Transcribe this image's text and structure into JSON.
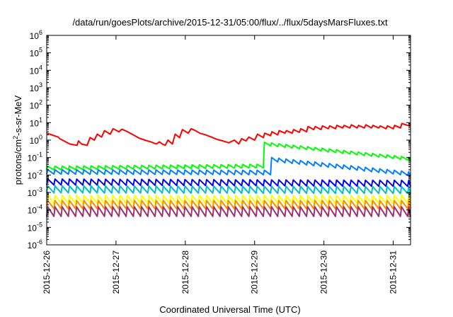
{
  "chart_data": {
    "type": "line",
    "title": "/data/run/goesPlots/archive/2015-12-31/05:00/flux/../flux/5daysMarsFluxes.txt",
    "xlabel": "Coordinated Universal Time (UTC)",
    "ylabel_parts": {
      "base": "protons/cm",
      "exp": "2",
      "rest": "-s-sr-MeV"
    },
    "yscale": "log",
    "ylim": [
      1e-06,
      1000000.0
    ],
    "y_ticks": [
      {
        "base": "10",
        "exp": "-6",
        "value": 1e-06
      },
      {
        "base": "10",
        "exp": "-5",
        "value": 1e-05
      },
      {
        "base": "10",
        "exp": "-4",
        "value": 0.0001
      },
      {
        "base": "10",
        "exp": "-3",
        "value": 0.001
      },
      {
        "base": "10",
        "exp": "-2",
        "value": 0.01
      },
      {
        "base": "10",
        "exp": "-1",
        "value": 0.1
      },
      {
        "base": "10",
        "exp": "0",
        "value": 1
      },
      {
        "base": "10",
        "exp": "1",
        "value": 10
      },
      {
        "base": "10",
        "exp": "2",
        "value": 100
      },
      {
        "base": "10",
        "exp": "3",
        "value": 1000
      },
      {
        "base": "10",
        "exp": "4",
        "value": 10000
      },
      {
        "base": "10",
        "exp": "5",
        "value": 100000
      },
      {
        "base": "10",
        "exp": "6",
        "value": 1000000
      }
    ],
    "x_ticks": [
      "2015-12-26",
      "2015-12-27",
      "2015-12-28",
      "2015-12-29",
      "2015-12-30",
      "2015-12-31"
    ],
    "x_start": "2015-12-26T00:00",
    "x_end": "2015-12-31T06:00",
    "grid": false,
    "series": [
      {
        "color": "#ff0000",
        "points": [
          [
            "2015-12-26T00:00",
            2.5
          ],
          [
            "2015-12-26T04:00",
            1.5
          ],
          [
            "2015-12-26T04:30",
            1.2
          ],
          [
            "2015-12-26T08:00",
            0.6
          ],
          [
            "2015-12-26T10:30",
            0.5
          ],
          [
            "2015-12-26T11:00",
            0.9
          ],
          [
            "2015-12-26T12:00",
            0.6
          ],
          [
            "2015-12-26T14:00",
            0.5
          ],
          [
            "2015-12-26T15:00",
            1.4
          ],
          [
            "2015-12-26T16:30",
            1.0
          ],
          [
            "2015-12-26T17:30",
            2.2
          ],
          [
            "2015-12-26T19:00",
            1.5
          ],
          [
            "2015-12-26T20:00",
            3.5
          ],
          [
            "2015-12-26T22:00",
            2.2
          ],
          [
            "2015-12-26T23:00",
            4.5
          ],
          [
            "2015-12-27T01:00",
            3.0
          ],
          [
            "2015-12-27T02:00",
            4.2
          ],
          [
            "2015-12-27T04:00",
            3.0
          ],
          [
            "2015-12-27T06:00",
            2.0
          ],
          [
            "2015-12-27T08:00",
            1.3
          ],
          [
            "2015-12-27T10:00",
            1.0
          ],
          [
            "2015-12-27T12:00",
            0.8
          ],
          [
            "2015-12-27T14:00",
            0.6
          ],
          [
            "2015-12-27T15:00",
            0.8
          ],
          [
            "2015-12-27T16:00",
            0.6
          ],
          [
            "2015-12-27T17:00",
            0.5
          ],
          [
            "2015-12-27T18:00",
            1.0
          ],
          [
            "2015-12-27T19:30",
            0.6
          ],
          [
            "2015-12-27T20:30",
            2.2
          ],
          [
            "2015-12-27T22:00",
            1.4
          ],
          [
            "2015-12-27T23:00",
            4.0
          ],
          [
            "2015-12-28T01:00",
            2.5
          ],
          [
            "2015-12-28T02:00",
            4.5
          ],
          [
            "2015-12-28T03:30",
            3.5
          ],
          [
            "2015-12-28T05:00",
            2.5
          ],
          [
            "2015-12-28T07:00",
            2.0
          ],
          [
            "2015-12-28T09:00",
            1.5
          ],
          [
            "2015-12-28T11:00",
            1.1
          ],
          [
            "2015-12-28T13:00",
            0.9
          ],
          [
            "2015-12-28T15:00",
            0.7
          ],
          [
            "2015-12-28T17:00",
            1.0
          ],
          [
            "2015-12-28T18:30",
            0.6
          ],
          [
            "2015-12-28T19:30",
            1.2
          ],
          [
            "2015-12-28T21:00",
            0.9
          ],
          [
            "2015-12-28T22:00",
            1.5
          ],
          [
            "2015-12-29T00:00",
            1.0
          ],
          [
            "2015-12-29T01:00",
            2.2
          ],
          [
            "2015-12-29T03:00",
            1.4
          ],
          [
            "2015-12-29T03:30",
            2.5
          ],
          [
            "2015-12-29T05:30",
            1.8
          ],
          [
            "2015-12-29T06:00",
            3.0
          ],
          [
            "2015-12-29T08:00",
            2.0
          ],
          [
            "2015-12-29T08:30",
            3.5
          ],
          [
            "2015-12-29T10:30",
            2.5
          ],
          [
            "2015-12-29T11:00",
            3.5
          ],
          [
            "2015-12-29T13:00",
            2.5
          ],
          [
            "2015-12-29T13:30",
            4.0
          ],
          [
            "2015-12-29T15:30",
            2.8
          ],
          [
            "2015-12-29T16:00",
            4.5
          ],
          [
            "2015-12-29T18:00",
            3.0
          ],
          [
            "2015-12-29T18:30",
            6.0
          ],
          [
            "2015-12-29T20:30",
            4.0
          ],
          [
            "2015-12-29T21:00",
            6.0
          ],
          [
            "2015-12-29T23:00",
            4.0
          ],
          [
            "2015-12-29T23:30",
            6.5
          ],
          [
            "2015-12-30T01:30",
            4.5
          ],
          [
            "2015-12-30T02:00",
            6.5
          ],
          [
            "2015-12-30T04:00",
            4.5
          ],
          [
            "2015-12-30T04:30",
            7.0
          ],
          [
            "2015-12-30T06:30",
            5.0
          ],
          [
            "2015-12-30T07:00",
            7.0
          ],
          [
            "2015-12-30T09:00",
            5.0
          ],
          [
            "2015-12-30T09:30",
            7.5
          ],
          [
            "2015-12-30T11:30",
            5.0
          ],
          [
            "2015-12-30T12:00",
            7.0
          ],
          [
            "2015-12-30T14:00",
            5.0
          ],
          [
            "2015-12-30T14:30",
            7.5
          ],
          [
            "2015-12-30T16:30",
            5.0
          ],
          [
            "2015-12-30T17:00",
            7.0
          ],
          [
            "2015-12-30T19:00",
            5.0
          ],
          [
            "2015-12-30T19:30",
            6.5
          ],
          [
            "2015-12-30T21:30",
            4.5
          ],
          [
            "2015-12-30T22:00",
            6.5
          ],
          [
            "2015-12-31T00:00",
            4.5
          ],
          [
            "2015-12-31T00:30",
            7.0
          ],
          [
            "2015-12-31T02:30",
            5.0
          ],
          [
            "2015-12-31T03:00",
            9.0
          ],
          [
            "2015-12-31T05:00",
            7.0
          ],
          [
            "2015-12-31T06:00",
            7.0
          ]
        ]
      },
      {
        "color": "#00ff00",
        "base": 0.025,
        "jump_at": "2015-12-29T03:00",
        "jump_to": 0.6,
        "end": 0.08,
        "amp": 1.6
      },
      {
        "color": "#0080ff",
        "base": 0.015,
        "jump_at": "2015-12-29T04:00",
        "jump_to": 0.08,
        "end": 0.011,
        "amp": 1.8
      },
      {
        "color": "#0000ff",
        "base": 0.004,
        "end": 0.0025,
        "amp": 2.2
      },
      {
        "color": "#00c0c0",
        "base": 0.0015,
        "end": 0.0012,
        "amp": 2.5
      },
      {
        "color": "#ffff00",
        "base": 0.0004,
        "end": 0.0004,
        "amp": 2.8
      },
      {
        "color": "#ff8c00",
        "base": 0.0002,
        "end": 0.0002,
        "amp": 3.0
      },
      {
        "color": "#a0306e",
        "base": 8e-05,
        "end": 8e-05,
        "amp": 3.5
      }
    ]
  }
}
